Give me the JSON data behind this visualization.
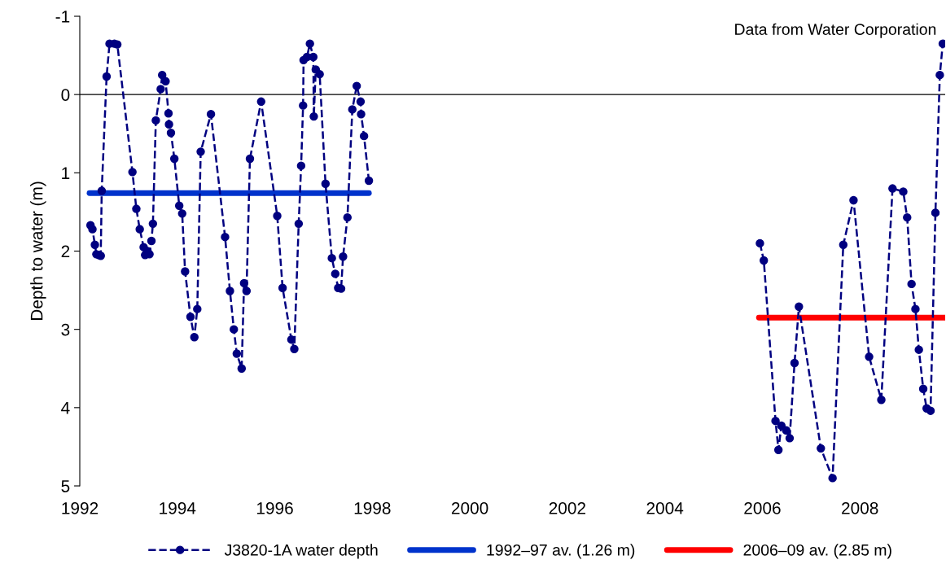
{
  "chart_data": {
    "type": "line",
    "ylabel": "Depth to water (m)",
    "annotations": [
      "Data from Water Corporation"
    ],
    "xlim": [
      1992,
      2009.75
    ],
    "xticks": [
      1992,
      1994,
      1996,
      1998,
      2000,
      2002,
      2004,
      2006,
      2008
    ],
    "ylim": [
      5,
      -1
    ],
    "yticks": [
      -1,
      0,
      1,
      2,
      3,
      4,
      5
    ],
    "ref_lines": [
      {
        "axis": "y",
        "value": 0,
        "color": "#000000"
      }
    ],
    "grid": false,
    "legend": "bottom",
    "series": [
      {
        "name": "J3820-1A water depth",
        "color": "#000080",
        "marker": "circle",
        "line_style": "dashed",
        "x": [
          1992.22,
          1992.26,
          1992.31,
          1992.34,
          1992.39,
          1992.43,
          1992.45,
          1992.55,
          1992.61,
          1992.71,
          1992.77,
          1993.08,
          1993.16,
          1993.23,
          1993.31,
          1993.34,
          1993.39,
          1993.43,
          1993.47,
          1993.5,
          1993.56,
          1993.66,
          1993.69,
          1993.76,
          1993.82,
          1993.83,
          1993.87,
          1993.94,
          1994.04,
          1994.1,
          1994.16,
          1994.27,
          1994.35,
          1994.41,
          1994.48,
          1994.69,
          1994.98,
          1995.08,
          1995.16,
          1995.22,
          1995.32,
          1995.37,
          1995.42,
          1995.49,
          1995.72,
          1996.05,
          1996.16,
          1996.34,
          1996.4,
          1996.49,
          1996.54,
          1996.58,
          1996.59,
          1996.66,
          1996.72,
          1996.79,
          1996.8,
          1996.84,
          1996.92,
          1997.04,
          1997.17,
          1997.24,
          1997.3,
          1997.36,
          1997.4,
          1997.49,
          1997.59,
          1997.68,
          1997.76,
          1997.77,
          1997.83,
          1997.93,
          2001,
          2005.95,
          2006.03,
          2006.27,
          2006.33,
          2006.39,
          2006.49,
          2006.56,
          2006.66,
          2006.75,
          2007.2,
          2007.44,
          2007.66,
          2007.87,
          2008.19,
          2008.44,
          2008.67,
          2008.89,
          2008.97,
          2009.06,
          2009.14,
          2009.21,
          2009.3,
          2009.37,
          2009.45,
          2009.55,
          2009.64,
          2009.7
        ],
        "values": [
          1.67,
          1.72,
          1.92,
          2.04,
          2.05,
          2.06,
          1.23,
          -0.23,
          -0.65,
          -0.65,
          -0.64,
          0.99,
          1.46,
          1.72,
          1.95,
          2.05,
          2.0,
          2.04,
          1.87,
          1.65,
          0.33,
          -0.07,
          -0.25,
          -0.17,
          0.24,
          0.38,
          0.49,
          0.82,
          1.42,
          1.52,
          2.26,
          2.84,
          3.1,
          2.74,
          0.73,
          0.25,
          1.82,
          2.51,
          3.0,
          3.31,
          3.5,
          2.41,
          2.51,
          0.82,
          0.09,
          1.55,
          2.47,
          3.13,
          3.25,
          1.65,
          0.91,
          0.14,
          -0.44,
          -0.48,
          -0.65,
          -0.48,
          0.28,
          -0.32,
          -0.26,
          1.14,
          2.09,
          2.29,
          2.47,
          2.48,
          2.07,
          1.57,
          0.19,
          -0.11,
          0.09,
          0.25,
          0.53,
          1.1,
          null,
          1.9,
          2.12,
          4.17,
          4.54,
          4.23,
          4.29,
          4.39,
          3.43,
          2.71,
          4.52,
          4.9,
          1.92,
          1.35,
          3.35,
          3.9,
          1.2,
          1.24,
          1.57,
          2.42,
          2.74,
          3.26,
          3.76,
          4.01,
          4.04,
          1.51,
          -0.25,
          -0.65
        ]
      },
      {
        "name": "1992–97 av. (1.26 m)",
        "color": "#0033cc",
        "marker": "none",
        "line_style": "solid",
        "x": [
          1992.2,
          1997.93
        ],
        "values": [
          1.26,
          1.26
        ]
      },
      {
        "name": "2006–09 av. (2.85 m)",
        "color": "#ff0000",
        "marker": "none",
        "line_style": "solid",
        "x": [
          2005.93,
          2009.75
        ],
        "values": [
          2.85,
          2.85
        ]
      }
    ]
  }
}
